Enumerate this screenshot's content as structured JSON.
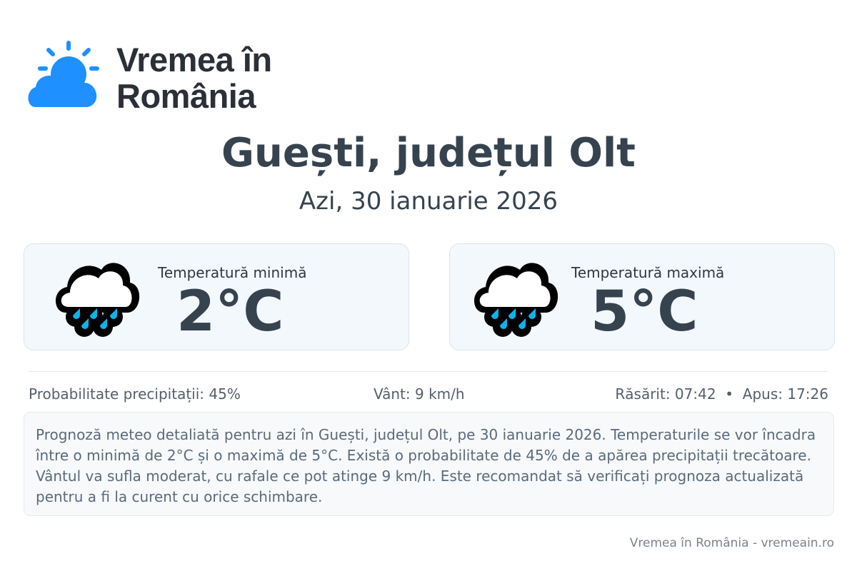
{
  "brand": {
    "name_line1": "Vremea în",
    "name_line2": "România",
    "color": "#1e90ff"
  },
  "header": {
    "title": "Guești, județul Olt",
    "date": "Azi, 30 ianuarie 2026"
  },
  "cards": [
    {
      "label": "Temperatură minimă",
      "value": "2°C",
      "icon": "rain-cloud-icon"
    },
    {
      "label": "Temperatură maximă",
      "value": "5°C",
      "icon": "rain-cloud-icon"
    }
  ],
  "stats": {
    "precipitation": "Probabilitate precipitații: 45%",
    "wind": "Vânt: 9 km/h",
    "sun": "Răsărit: 07:42  •  Apus: 17:26"
  },
  "description": "Prognoză meteo detaliată pentru azi în Guești, județul Olt, pe 30 ianuarie 2026. Temperaturile se vor încadra între o minimă de 2°C și o maximă de 5°C. Există o probabilitate de 45% de a apărea precipitații trecătoare. Vântul va sufla moderat, cu rafale ce pot atinge 9 km/h. Este recomandat să verificați prognoza actualizată pentru a fi la curent cu orice schimbare.",
  "footer": "Vremea în România - vremeain.ro"
}
